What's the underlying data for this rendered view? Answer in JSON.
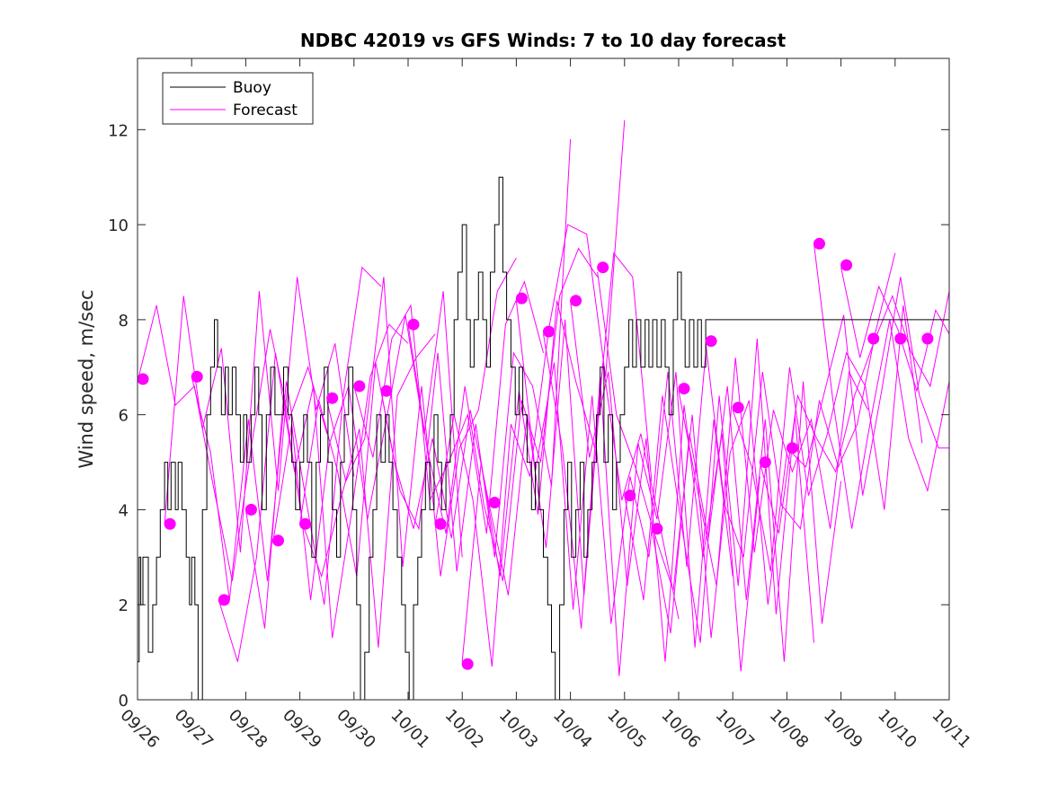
{
  "colors": {
    "buoy": "#000000",
    "forecast": "#ff00ff",
    "axis": "#262626",
    "background": "#ffffff"
  },
  "chart_data": {
    "type": "line",
    "title": "NDBC 42019 vs GFS Winds: 7 to 10 day forecast",
    "xlabel": "",
    "ylabel": "Wind speed, m/sec",
    "xlim": [
      0,
      15
    ],
    "ylim": [
      0,
      13.5
    ],
    "x_tick_labels": [
      "09/26",
      "09/27",
      "09/28",
      "09/29",
      "09/30",
      "10/01",
      "10/02",
      "10/03",
      "10/04",
      "10/05",
      "10/06",
      "10/07",
      "10/08",
      "10/09",
      "10/10",
      "10/11"
    ],
    "y_ticks": [
      0,
      2,
      4,
      6,
      8,
      10,
      12
    ],
    "legend": {
      "position": "top-left",
      "entries": [
        "Buoy",
        "Forecast"
      ]
    },
    "buoy": {
      "name": "Buoy",
      "x": [
        0.0,
        0.03,
        0.06,
        0.1,
        0.2,
        0.28,
        0.35,
        0.42,
        0.5,
        0.56,
        0.62,
        0.7,
        0.75,
        0.82,
        0.9,
        0.96,
        1.0,
        1.06,
        1.12,
        1.2,
        1.28,
        1.35,
        1.42,
        1.48,
        1.55,
        1.62,
        1.68,
        1.75,
        1.82,
        1.9,
        1.96,
        2.02,
        2.1,
        2.17,
        2.24,
        2.3,
        2.38,
        2.46,
        2.54,
        2.62,
        2.7,
        2.78,
        2.85,
        2.92,
        3.0,
        3.07,
        3.14,
        3.22,
        3.3,
        3.38,
        3.45,
        3.52,
        3.6,
        3.68,
        3.75,
        3.82,
        3.9,
        3.98,
        4.05,
        4.12,
        4.2,
        4.28,
        4.35,
        4.42,
        4.5,
        4.58,
        4.65,
        4.72,
        4.8,
        4.88,
        4.95,
        5.02,
        5.1,
        5.18,
        5.25,
        5.32,
        5.4,
        5.48,
        5.55,
        5.62,
        5.7,
        5.78,
        5.85,
        5.92,
        6.0,
        6.08,
        6.15,
        6.22,
        6.3,
        6.38,
        6.45,
        6.52,
        6.6,
        6.68,
        6.75,
        6.82,
        6.9,
        6.98,
        7.05,
        7.12,
        7.2,
        7.28,
        7.35,
        7.42,
        7.5,
        7.58,
        7.65,
        7.72,
        7.8,
        7.88,
        7.95,
        8.02,
        8.1,
        8.18,
        8.25,
        8.32,
        8.4,
        8.48,
        8.55,
        8.62,
        8.7,
        8.78,
        8.85,
        8.92,
        9.0,
        9.08,
        9.15,
        9.22,
        9.3,
        9.38,
        9.45,
        9.52,
        9.6,
        9.68,
        9.75,
        9.82,
        9.9,
        9.98,
        10.05,
        10.12,
        10.2,
        10.28,
        10.35,
        10.42,
        10.5,
        10.58,
        10.65,
        10.72,
        10.8,
        10.88,
        10.95,
        11.02,
        11.1,
        11.18,
        11.25,
        11.32,
        11.4,
        11.48,
        11.55,
        11.62,
        11.7,
        11.78,
        11.85,
        11.92,
        12.0,
        12.08,
        12.15,
        12.22,
        12.3,
        12.38,
        12.45,
        12.52,
        12.6,
        12.68,
        12.75,
        12.82,
        12.9,
        12.98,
        13.05,
        13.12,
        13.2,
        13.28,
        13.35,
        13.42,
        13.5,
        13.58,
        13.65,
        13.72,
        13.8,
        13.88,
        13.95,
        14.02,
        14.1,
        14.18,
        14.25,
        14.32,
        14.4,
        14.48,
        14.55,
        14.62,
        14.7,
        14.78,
        14.85,
        14.92,
        15.0
      ],
      "y": [
        0.8,
        3,
        2,
        3,
        1,
        2,
        3,
        4,
        5,
        4,
        5,
        4,
        5,
        4,
        3,
        2,
        3,
        2,
        0,
        4,
        6,
        7,
        8,
        7,
        6,
        7,
        6,
        7,
        6,
        5,
        6,
        5,
        6,
        7,
        6,
        4,
        6,
        7,
        6,
        6,
        7,
        6,
        5,
        4,
        5,
        6,
        5,
        3,
        5,
        6,
        7,
        5,
        4,
        3,
        5,
        6,
        7,
        4,
        2,
        0,
        1,
        3,
        4,
        6,
        5,
        6,
        5,
        4,
        3,
        2,
        1,
        0,
        2,
        3,
        4,
        5,
        4,
        6,
        5,
        4,
        5,
        6,
        8,
        9,
        10,
        8,
        7,
        8,
        9,
        8,
        7,
        9,
        10,
        11,
        9,
        8,
        7,
        6,
        7,
        6,
        5,
        4,
        5,
        4,
        3,
        2,
        1,
        0,
        2,
        4,
        5,
        3,
        4,
        5,
        3,
        4,
        5,
        6,
        7,
        5,
        6,
        4,
        5,
        6,
        7,
        8,
        7,
        8,
        7,
        8,
        7,
        8,
        7,
        8,
        7,
        6,
        8,
        9,
        8,
        7,
        8,
        7,
        8,
        7,
        8,
        8,
        8,
        8,
        8,
        8,
        8,
        8,
        8,
        8,
        8,
        8,
        8,
        8,
        8,
        8,
        8,
        8,
        8,
        8,
        8,
        8,
        8,
        8,
        8,
        8,
        8,
        8,
        8,
        8,
        8,
        8,
        8,
        8,
        8,
        8,
        8,
        8,
        8,
        8,
        8,
        8,
        8,
        8,
        8,
        8,
        8,
        8,
        8,
        8,
        8,
        8,
        8,
        8,
        8,
        8,
        8,
        8,
        8,
        8,
        8
      ]
    },
    "forecast_runs": [
      {
        "name": "Forecast",
        "x": [
          0.0,
          0.35,
          0.7,
          1.05,
          1.4,
          1.75,
          2.1,
          2.45,
          2.8,
          3.15,
          3.5
        ],
        "y": [
          6.7,
          8.3,
          6.2,
          6.6,
          4.5,
          2.5,
          5.3,
          7.8,
          5.9,
          7.0,
          5.6
        ]
      },
      {
        "name": "Forecast",
        "x": [
          0.5,
          0.85,
          1.2,
          1.55,
          1.9,
          2.25,
          2.6,
          2.95,
          3.3,
          3.65,
          4.0
        ],
        "y": [
          3.7,
          8.5,
          5.7,
          7.4,
          3.1,
          8.6,
          4.4,
          8.9,
          6.1,
          7.5,
          4.7
        ]
      },
      {
        "name": "Forecast",
        "x": [
          1.0,
          1.35,
          1.7,
          2.05,
          2.4,
          2.75,
          3.1,
          3.45,
          3.8,
          4.15,
          4.5
        ],
        "y": [
          6.8,
          5.2,
          2.1,
          5.9,
          2.5,
          6.7,
          4.3,
          2.0,
          6.4,
          9.1,
          8.7
        ]
      },
      {
        "name": "Forecast",
        "x": [
          1.5,
          1.85,
          2.2,
          2.55,
          2.9,
          3.25,
          3.6,
          3.95,
          4.3,
          4.65,
          5.0
        ],
        "y": [
          2.1,
          0.8,
          3.0,
          7.3,
          4.8,
          6.6,
          1.3,
          3.9,
          6.8,
          7.9,
          7.5
        ]
      },
      {
        "name": "Forecast",
        "x": [
          2.0,
          2.35,
          2.7,
          3.05,
          3.4,
          3.75,
          4.1,
          4.45,
          4.8,
          5.15,
          5.5
        ],
        "y": [
          4.0,
          1.5,
          6.4,
          3.7,
          2.6,
          4.2,
          5.7,
          1.1,
          6.4,
          7.2,
          7.7
        ]
      },
      {
        "name": "Forecast",
        "x": [
          2.5,
          2.85,
          3.2,
          3.55,
          3.9,
          4.25,
          4.6,
          4.95,
          5.3,
          5.65,
          6.0
        ],
        "y": [
          3.3,
          5.8,
          2.1,
          5.4,
          6.6,
          3.8,
          5.9,
          8.1,
          5.6,
          8.6,
          3.0
        ]
      },
      {
        "name": "Forecast",
        "x": [
          3.0,
          3.35,
          3.7,
          4.05,
          4.4,
          4.75,
          5.1,
          5.45,
          5.8,
          6.15,
          6.5
        ],
        "y": [
          3.7,
          6.3,
          4.8,
          2.6,
          7.1,
          5.0,
          3.6,
          5.5,
          3.4,
          6.1,
          4.1
        ]
      },
      {
        "name": "Forecast",
        "x": [
          3.5,
          3.85,
          4.2,
          4.55,
          4.9,
          5.25,
          5.6,
          5.95,
          6.3,
          6.65,
          7.0
        ],
        "y": [
          6.3,
          4.6,
          5.5,
          8.9,
          2.8,
          6.6,
          2.6,
          5.3,
          6.1,
          8.6,
          9.3
        ]
      },
      {
        "name": "Forecast",
        "x": [
          4.0,
          4.35,
          4.7,
          5.05,
          5.4,
          5.75,
          6.1,
          6.45,
          6.8,
          7.15,
          7.5
        ],
        "y": [
          6.6,
          5.1,
          7.6,
          8.3,
          4.2,
          5.0,
          6.0,
          3.5,
          7.9,
          8.8,
          7.3
        ]
      },
      {
        "name": "Forecast",
        "x": [
          4.5,
          4.85,
          5.2,
          5.55,
          5.9,
          6.25,
          6.6,
          6.95,
          7.3,
          7.65,
          8.0
        ],
        "y": [
          6.5,
          4.4,
          3.6,
          7.3,
          2.7,
          5.8,
          3.0,
          7.3,
          6.6,
          4.5,
          11.8
        ]
      },
      {
        "name": "Forecast",
        "x": [
          5.0,
          5.35,
          5.7,
          6.05,
          6.4,
          6.75,
          7.1,
          7.45,
          7.8,
          8.15,
          8.5
        ],
        "y": [
          7.9,
          5.3,
          3.5,
          6.6,
          4.1,
          2.5,
          6.3,
          5.0,
          8.5,
          9.5,
          8.9
        ]
      },
      {
        "name": "Forecast",
        "x": [
          5.5,
          5.85,
          6.2,
          6.55,
          6.9,
          7.25,
          7.6,
          7.95,
          8.3,
          8.65,
          9.0
        ],
        "y": [
          3.7,
          6.0,
          4.2,
          0.7,
          5.8,
          4.7,
          7.8,
          10.0,
          9.8,
          6.8,
          12.2
        ]
      },
      {
        "name": "Forecast",
        "x": [
          6.0,
          6.35,
          6.7,
          7.05,
          7.4,
          7.75,
          8.1,
          8.45,
          8.8,
          9.15,
          9.5
        ],
        "y": [
          0.8,
          5.0,
          2.6,
          6.5,
          3.9,
          8.4,
          6.7,
          5.3,
          9.4,
          8.9,
          4.6
        ]
      },
      {
        "name": "Forecast",
        "x": [
          6.5,
          6.85,
          7.2,
          7.55,
          7.9,
          8.25,
          8.6,
          8.95,
          9.3,
          9.65,
          10.0
        ],
        "y": [
          4.1,
          2.2,
          6.0,
          3.2,
          8.0,
          2.2,
          7.1,
          4.2,
          5.6,
          3.7,
          1.7
        ]
      },
      {
        "name": "Forecast",
        "x": [
          7.0,
          7.35,
          7.7,
          8.05,
          8.4,
          8.75,
          9.1,
          9.45,
          9.8,
          10.15,
          10.5
        ],
        "y": [
          8.4,
          4.8,
          7.1,
          1.9,
          6.4,
          1.6,
          4.7,
          3.0,
          6.9,
          2.8,
          7.3
        ]
      },
      {
        "name": "Forecast",
        "x": [
          7.5,
          7.85,
          8.2,
          8.55,
          8.9,
          9.25,
          9.6,
          9.95,
          10.3,
          10.65,
          11.0
        ],
        "y": [
          7.7,
          5.3,
          1.5,
          6.8,
          0.5,
          5.4,
          3.8,
          6.9,
          1.1,
          5.9,
          2.6
        ]
      },
      {
        "name": "Forecast",
        "x": [
          8.0,
          8.35,
          8.7,
          9.05,
          9.4,
          9.75,
          10.1,
          10.45,
          10.8,
          11.15,
          11.5
        ],
        "y": [
          8.4,
          5.1,
          6.9,
          2.4,
          5.5,
          0.8,
          6.2,
          3.0,
          5.6,
          0.6,
          4.7
        ]
      },
      {
        "name": "Forecast",
        "x": [
          8.5,
          8.85,
          9.2,
          9.55,
          9.9,
          10.25,
          10.6,
          10.95,
          11.3,
          11.65,
          12.0
        ],
        "y": [
          9.0,
          6.0,
          4.9,
          3.5,
          2.3,
          6.0,
          1.3,
          5.2,
          6.3,
          2.0,
          5.2
        ]
      },
      {
        "name": "Forecast",
        "x": [
          9.0,
          9.35,
          9.7,
          10.05,
          10.4,
          10.75,
          11.1,
          11.45,
          11.8,
          12.15,
          12.5
        ],
        "y": [
          4.3,
          2.1,
          6.4,
          3.7,
          1.2,
          6.4,
          2.4,
          7.6,
          1.8,
          6.0,
          1.2
        ]
      },
      {
        "name": "Forecast",
        "x": [
          9.5,
          9.85,
          10.2,
          10.55,
          10.9,
          11.25,
          11.6,
          11.95,
          12.3,
          12.65,
          13.0
        ],
        "y": [
          3.6,
          1.4,
          5.6,
          3.4,
          6.6,
          2.1,
          5.9,
          0.8,
          6.7,
          1.6,
          4.6
        ]
      },
      {
        "name": "Forecast",
        "x": [
          10.0,
          10.35,
          10.7,
          11.05,
          11.4,
          11.75,
          12.1,
          12.45,
          12.8,
          13.15,
          13.5
        ],
        "y": [
          6.5,
          4.4,
          2.4,
          7.2,
          3.1,
          6.1,
          4.8,
          5.9,
          3.6,
          6.9,
          6.1
        ]
      },
      {
        "name": "Forecast",
        "x": [
          10.5,
          10.85,
          11.2,
          11.55,
          11.9,
          12.25,
          12.6,
          12.95,
          13.3,
          13.65,
          14.0
        ],
        "y": [
          7.5,
          4.1,
          3.0,
          6.9,
          4.1,
          3.6,
          6.3,
          4.9,
          5.8,
          7.8,
          9.4
        ]
      },
      {
        "name": "Forecast",
        "x": [
          11.0,
          11.35,
          11.7,
          12.05,
          12.4,
          12.75,
          13.1,
          13.45,
          13.8,
          14.15,
          14.5
        ],
        "y": [
          6.1,
          4.9,
          2.7,
          7.0,
          4.3,
          5.6,
          7.3,
          6.6,
          4.0,
          8.3,
          5.4
        ]
      },
      {
        "name": "Forecast",
        "x": [
          11.5,
          11.85,
          12.2,
          12.55,
          12.9,
          13.25,
          13.6,
          13.95,
          14.3,
          14.65,
          15.0
        ],
        "y": [
          5.0,
          3.5,
          6.4,
          5.5,
          4.8,
          6.4,
          7.5,
          8.5,
          7.3,
          6.6,
          8.6
        ]
      },
      {
        "name": "Forecast",
        "x": [
          12.0,
          12.35,
          12.7,
          13.05,
          13.4,
          13.75,
          14.1,
          14.45,
          14.8,
          15.0
        ],
        "y": [
          5.3,
          4.9,
          6.5,
          8.1,
          4.3,
          6.5,
          8.9,
          6.4,
          5.3,
          5.3
        ]
      },
      {
        "name": "Forecast",
        "x": [
          12.5,
          12.85,
          13.2,
          13.55,
          13.9,
          14.25,
          14.6,
          15.0
        ],
        "y": [
          9.6,
          6.3,
          3.6,
          5.9,
          8.0,
          5.5,
          4.4,
          6.7
        ]
      },
      {
        "name": "Forecast",
        "x": [
          13.0,
          13.35,
          13.7,
          14.05,
          14.4,
          14.75,
          15.0
        ],
        "y": [
          9.1,
          7.2,
          8.7,
          7.8,
          6.5,
          8.2,
          7.7
        ]
      }
    ],
    "forecast_markers": {
      "name": "Forecast",
      "x": [
        0.1,
        0.6,
        1.1,
        1.6,
        2.1,
        2.6,
        3.1,
        3.6,
        4.1,
        4.6,
        5.1,
        5.6,
        6.1,
        6.6,
        7.1,
        7.6,
        8.1,
        8.6,
        9.1,
        9.6,
        10.1,
        10.6,
        11.1,
        11.6,
        12.1,
        12.6,
        13.1,
        13.6,
        14.1,
        14.6
      ],
      "y": [
        6.75,
        3.7,
        6.8,
        2.1,
        4.0,
        3.35,
        3.7,
        6.35,
        6.6,
        6.5,
        7.9,
        3.7,
        0.75,
        4.15,
        8.45,
        7.75,
        8.4,
        9.1,
        4.3,
        3.6,
        6.55,
        7.55,
        6.15,
        5.0,
        5.3,
        9.6,
        9.15,
        7.6,
        7.6,
        7.6
      ]
    }
  }
}
